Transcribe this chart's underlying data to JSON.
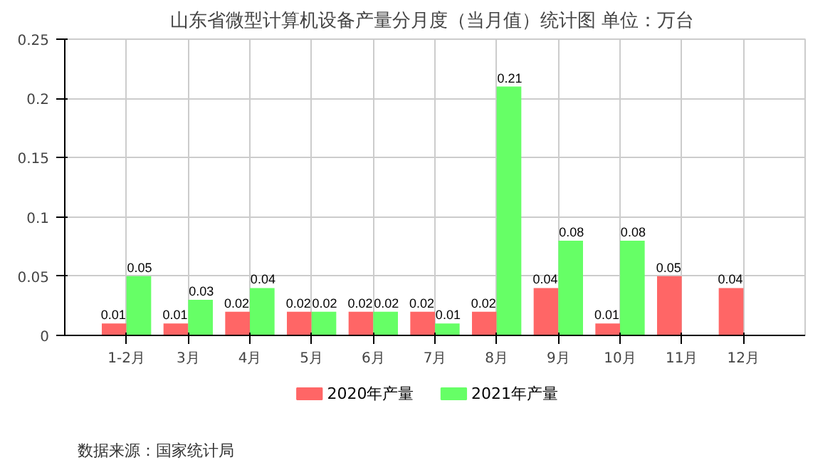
{
  "chart_data": {
    "type": "bar",
    "title": "山东省微型计算机设备产量分月度（当月值）统计图  单位：万台",
    "categories": [
      "1-2月",
      "3月",
      "4月",
      "5月",
      "6月",
      "7月",
      "8月",
      "9月",
      "10月",
      "11月",
      "12月"
    ],
    "series": [
      {
        "name": "2020年产量",
        "color": "#ff6666",
        "values": [
          0.01,
          0.01,
          0.02,
          0.02,
          0.02,
          0.02,
          0.02,
          0.04,
          0.01,
          0.05,
          0.04
        ]
      },
      {
        "name": "2021年产量",
        "color": "#66ff66",
        "values": [
          0.05,
          0.03,
          0.04,
          0.02,
          0.02,
          0.01,
          0.21,
          0.08,
          0.08,
          null,
          null
        ]
      }
    ],
    "ylim": [
      0,
      0.25
    ],
    "yticks": [
      0,
      0.05,
      0.1,
      0.15,
      0.2,
      0.25
    ],
    "grid": true,
    "legend": "bottom",
    "data_labels": true,
    "annotations": [
      "数据来源：国家统计局"
    ]
  }
}
